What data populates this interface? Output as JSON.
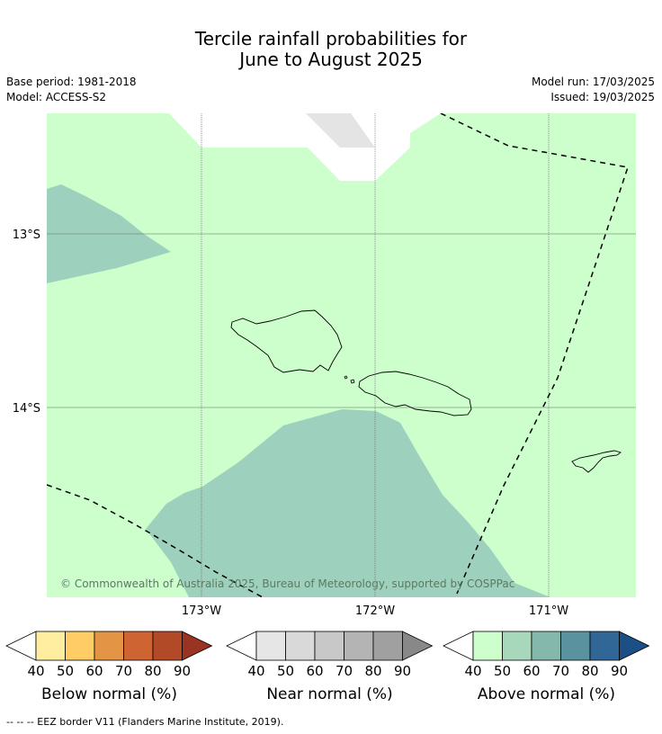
{
  "header": {
    "title_line1": "Tercile rainfall probabilities for",
    "title_line2": "June to August 2025",
    "base_period": "Base period: 1981-2018",
    "model": "Model: ACCESS-S2",
    "model_run": "Model run: 17/03/2025",
    "issued": "Issued: 19/03/2025"
  },
  "map": {
    "lat_labels": [
      "13°S",
      "14°S"
    ],
    "lon_labels": [
      "173°W",
      "172°W",
      "171°W"
    ],
    "copyright": "© Commonwealth of Australia 2025, Bureau of Meteorology, supported by COSPPac",
    "colors": {
      "above_40_50": "#ccffcc",
      "above_50_60": "#9ed1bd",
      "near_40_50": "#e4e4e4",
      "no_data": "#ffffff"
    }
  },
  "colorbars": [
    {
      "title": "Below normal (%)",
      "ticks": [
        "40",
        "50",
        "60",
        "70",
        "80",
        "90"
      ],
      "colors": [
        "#ffeea0",
        "#ffcc66",
        "#e39445",
        "#cf6433",
        "#b24a28",
        "#993322"
      ]
    },
    {
      "title": "Near normal (%)",
      "ticks": [
        "40",
        "50",
        "60",
        "70",
        "80",
        "90"
      ],
      "colors": [
        "#e6e6e6",
        "#d9d9d9",
        "#c8c8c8",
        "#b4b4b4",
        "#a0a0a0",
        "#888888"
      ]
    },
    {
      "title": "Above normal (%)",
      "ticks": [
        "40",
        "50",
        "60",
        "70",
        "80",
        "90"
      ],
      "colors": [
        "#ccffcc",
        "#a8d8bc",
        "#84b8ad",
        "#5a929f",
        "#316797",
        "#1c4f86"
      ]
    }
  ],
  "footnote": "--  --  -- EEZ border V11 (Flanders Marine Institute, 2019)."
}
